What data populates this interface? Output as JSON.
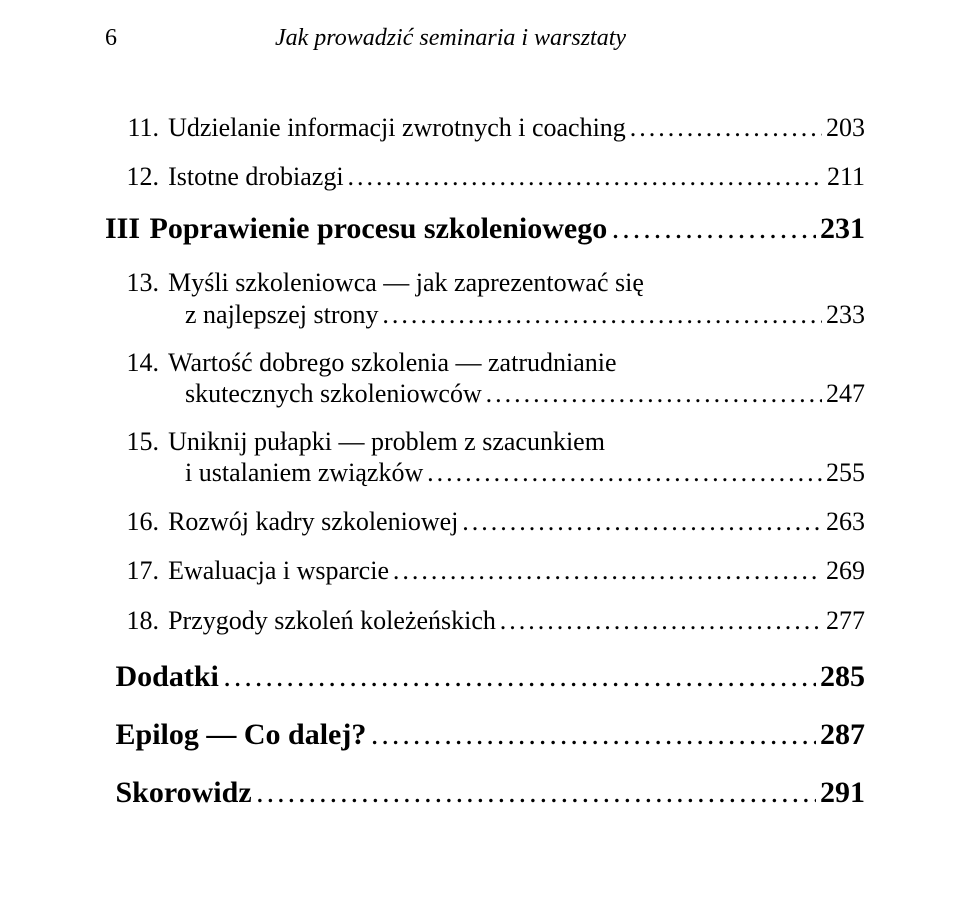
{
  "colors": {
    "background": "#ffffff",
    "text": "#000000",
    "leader": "#000000"
  },
  "typography": {
    "body_family": "Georgia, 'Times New Roman', serif",
    "running_head_fontsize_pt": 18,
    "part_fontsize_pt": 22,
    "chapter_fontsize_pt": 19,
    "item_fontsize_pt": 22
  },
  "page": {
    "number": "6",
    "book_title": "Jak prowadzić seminaria i warsztaty"
  },
  "toc": {
    "entries": [
      {
        "level": "chap",
        "num": "11.",
        "label_line1": "Udzielanie informacji zwrotnych i coaching",
        "label_line2": null,
        "page": "203"
      },
      {
        "level": "chap",
        "num": "12.",
        "label_line1": "Istotne drobiazgi",
        "label_line2": null,
        "page": "211"
      },
      {
        "level": "part",
        "num": "III",
        "label_line1": "Poprawienie procesu szkoleniowego",
        "label_line2": null,
        "page": "231"
      },
      {
        "level": "chap",
        "num": "13.",
        "label_line1": "Myśli szkoleniowca — jak zaprezentować się",
        "label_line2": "z najlepszej strony",
        "page": "233"
      },
      {
        "level": "chap",
        "num": "14.",
        "label_line1": "Wartość dobrego szkolenia — zatrudnianie",
        "label_line2": "skutecznych szkoleniowców",
        "page": "247"
      },
      {
        "level": "chap",
        "num": "15.",
        "label_line1": "Uniknij pułapki — problem z szacunkiem",
        "label_line2": "i ustalaniem związków",
        "page": "255"
      },
      {
        "level": "chap",
        "num": "16.",
        "label_line1": "Rozwój kadry szkoleniowej",
        "label_line2": null,
        "page": "263"
      },
      {
        "level": "chap",
        "num": "17.",
        "label_line1": "Ewaluacja i wsparcie",
        "label_line2": null,
        "page": "269"
      },
      {
        "level": "chap",
        "num": "18.",
        "label_line1": "Przygody szkoleń koleżeńskich",
        "label_line2": null,
        "page": "277"
      },
      {
        "level": "item",
        "num": "",
        "label_line1": "Dodatki",
        "label_line2": null,
        "page": "285"
      },
      {
        "level": "item",
        "num": "",
        "label_line1": "Epilog — Co dalej?",
        "label_line2": null,
        "page": "287"
      },
      {
        "level": "item",
        "num": "",
        "label_line1": "Skorowidz",
        "label_line2": null,
        "page": "291"
      }
    ]
  }
}
